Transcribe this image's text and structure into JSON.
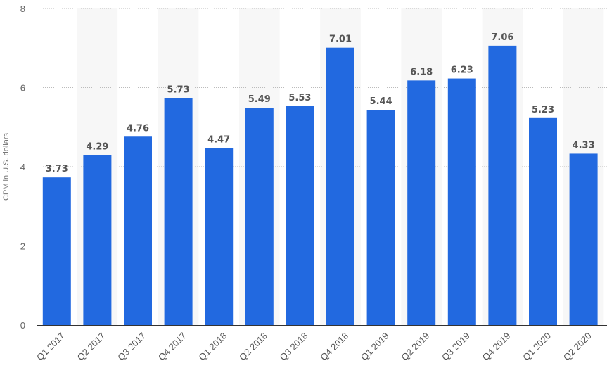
{
  "chart_data": {
    "type": "bar",
    "categories": [
      "Q1 2017",
      "Q2 2017",
      "Q3 2017",
      "Q4 2017",
      "Q1 2018",
      "Q2 2018",
      "Q3 2018",
      "Q4 2018",
      "Q1 2019",
      "Q2 2019",
      "Q3 2019",
      "Q4 2019",
      "Q1 2020",
      "Q2 2020"
    ],
    "values": [
      3.73,
      4.29,
      4.76,
      5.73,
      4.47,
      5.49,
      5.53,
      7.01,
      5.44,
      6.18,
      6.23,
      7.06,
      5.23,
      4.33
    ],
    "value_labels": [
      "3.73",
      "4.29",
      "4.76",
      "5.73",
      "4.47",
      "5.49",
      "5.53",
      "7.01",
      "5.44",
      "6.18",
      "6.23",
      "7.06",
      "5.23",
      "4.33"
    ],
    "title": "",
    "xlabel": "",
    "ylabel": "CPM in U.S. dollars",
    "ylim": [
      0,
      8
    ],
    "yticks": [
      "0",
      "2",
      "4",
      "6",
      "8"
    ],
    "grid": true,
    "legend": "none",
    "bar_color": "#2269E0",
    "band_color": "#F7F7F7"
  }
}
